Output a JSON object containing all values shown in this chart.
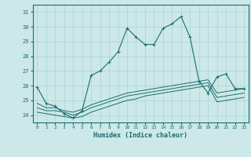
{
  "xlabel": "Humidex (Indice chaleur)",
  "ylabel": "",
  "background_color": "#cce8e8",
  "line_color": "#1a6e6e",
  "grid_color": "#aad4d4",
  "xlim": [
    -0.5,
    23.5
  ],
  "ylim": [
    23.5,
    31.5
  ],
  "yticks": [
    24,
    25,
    26,
    27,
    28,
    29,
    30,
    31
  ],
  "xticks": [
    0,
    1,
    2,
    3,
    4,
    5,
    6,
    7,
    8,
    9,
    10,
    11,
    12,
    13,
    14,
    15,
    16,
    17,
    18,
    19,
    20,
    21,
    22,
    23
  ],
  "line1": [
    25.9,
    24.8,
    24.6,
    24.1,
    23.8,
    24.3,
    26.7,
    27.0,
    27.6,
    28.3,
    29.9,
    29.3,
    28.8,
    28.8,
    29.9,
    30.2,
    30.7,
    29.3,
    26.3,
    25.5,
    26.6,
    26.8,
    25.8,
    25.8
  ],
  "line2": [
    24.8,
    24.5,
    24.5,
    24.3,
    24.2,
    24.4,
    24.7,
    24.9,
    25.1,
    25.3,
    25.5,
    25.6,
    25.7,
    25.8,
    25.9,
    26.0,
    26.1,
    26.2,
    26.3,
    26.4,
    25.5,
    25.6,
    25.7,
    25.8
  ],
  "line3": [
    24.5,
    24.3,
    24.3,
    24.2,
    24.0,
    24.2,
    24.5,
    24.7,
    24.9,
    25.1,
    25.3,
    25.4,
    25.5,
    25.6,
    25.7,
    25.8,
    25.9,
    26.0,
    26.1,
    26.2,
    25.2,
    25.3,
    25.4,
    25.5
  ],
  "line4": [
    24.2,
    24.1,
    24.0,
    23.9,
    23.8,
    23.9,
    24.2,
    24.4,
    24.6,
    24.8,
    25.0,
    25.1,
    25.3,
    25.4,
    25.5,
    25.6,
    25.7,
    25.8,
    25.9,
    26.0,
    24.9,
    25.0,
    25.1,
    25.2
  ]
}
